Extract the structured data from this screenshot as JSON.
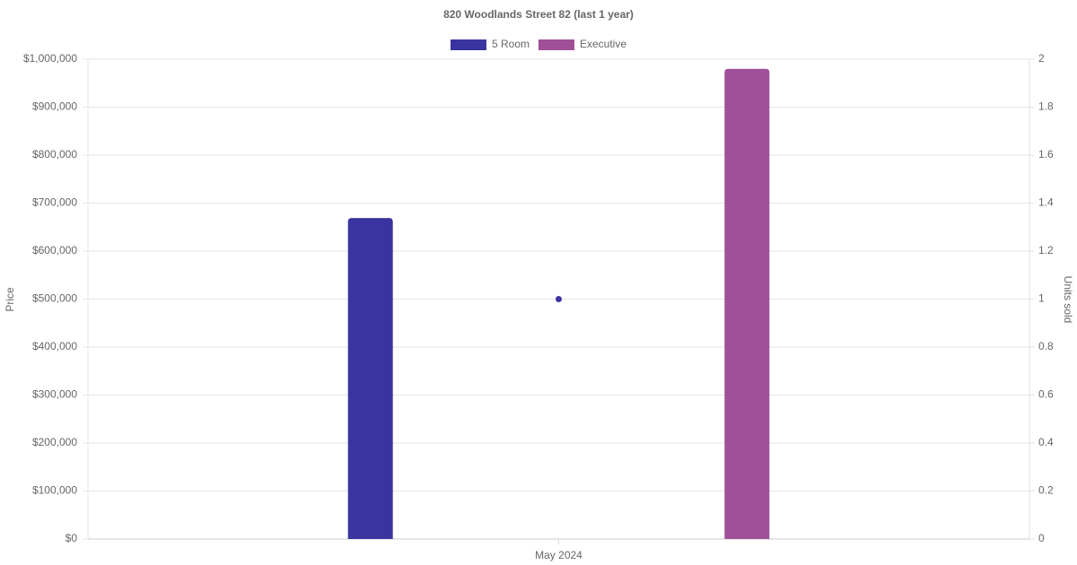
{
  "chart_data": {
    "type": "bar",
    "title": "820 Woodlands Street 82 (last 1 year)",
    "categories": [
      "May 2024"
    ],
    "series": [
      {
        "name": "5 Room",
        "color": "#3a34a0",
        "values": [
          669000
        ]
      },
      {
        "name": "Executive",
        "color": "#a05096",
        "values": [
          980000
        ]
      },
      {
        "type": "line",
        "axis": "y2",
        "color": "#3a34a0",
        "values": [
          1
        ]
      }
    ],
    "y_label": "Price",
    "y2_label": "Units sold",
    "ylim": [
      0,
      1000000
    ],
    "yticks": [
      {
        "value": 0,
        "label": "$0"
      },
      {
        "value": 100000,
        "label": "$100,000"
      },
      {
        "value": 200000,
        "label": "$200,000"
      },
      {
        "value": 300000,
        "label": "$300,000"
      },
      {
        "value": 400000,
        "label": "$400,000"
      },
      {
        "value": 500000,
        "label": "$500,000"
      },
      {
        "value": 600000,
        "label": "$600,000"
      },
      {
        "value": 700000,
        "label": "$700,000"
      },
      {
        "value": 800000,
        "label": "$800,000"
      },
      {
        "value": 900000,
        "label": "$900,000"
      },
      {
        "value": 1000000,
        "label": "$1,000,000"
      }
    ],
    "y2lim": [
      0,
      2
    ],
    "y2ticks": [
      0,
      0.2,
      0.4,
      0.6,
      0.8,
      1,
      1.2,
      1.4,
      1.6,
      1.8,
      2
    ],
    "grid": true,
    "legend": "top"
  }
}
